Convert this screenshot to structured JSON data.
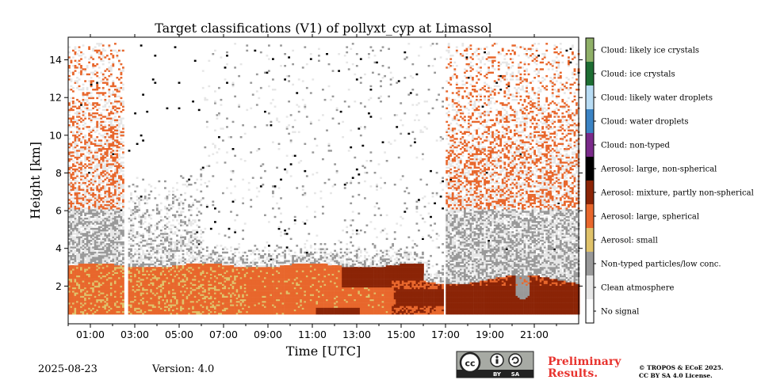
{
  "chart_data": {
    "type": "heatmap",
    "title": "Target classifications (V1) of pollyxt_cyp at Limassol",
    "xlabel": "Time [UTC]",
    "ylabel": "Height [km]",
    "xlim": [
      0,
      23.0
    ],
    "ylim": [
      0,
      15.2
    ],
    "x_ticks": [
      "01:00",
      "03:00",
      "05:00",
      "07:00",
      "09:00",
      "11:00",
      "13:00",
      "15:00",
      "17:00",
      "19:00",
      "21:00"
    ],
    "y_ticks": [
      "2",
      "4",
      "6",
      "8",
      "10",
      "12",
      "14"
    ],
    "legend": [
      {
        "label": "Cloud: likely ice crystals",
        "color": "#8fb068"
      },
      {
        "label": "Cloud: ice crystals",
        "color": "#1e6e33"
      },
      {
        "label": "Cloud: likely water droplets",
        "color": "#b8dcf4"
      },
      {
        "label": "Cloud: water droplets",
        "color": "#3b83c4"
      },
      {
        "label": "Cloud: non-typed",
        "color": "#7a2a8a"
      },
      {
        "label": "Aerosol: large, non-spherical",
        "color": "#000000"
      },
      {
        "label": "Aerosol: mixture, partly non-spherical",
        "color": "#8b2406"
      },
      {
        "label": "Aerosol: large, spherical",
        "color": "#e8672c"
      },
      {
        "label": "Aerosol: small",
        "color": "#e0c26a"
      },
      {
        "label": "Non-typed particles/low conc.",
        "color": "#999999"
      },
      {
        "label": "Clean atmosphere",
        "color": "#e6e6e6"
      },
      {
        "label": "No signal",
        "color": "#ffffff"
      }
    ],
    "missing_data_gaps": [
      [
        2.5,
        2.65
      ],
      [
        16.85,
        17.0
      ]
    ],
    "regions": [
      {
        "class": "Aerosol: large, spherical",
        "x": [
          0.0,
          16.85
        ],
        "y": [
          0.5,
          3.0
        ]
      },
      {
        "class": "Aerosol: mixture, partly non-spherical",
        "x": [
          17.0,
          23.0
        ],
        "y": [
          0.5,
          2.3
        ]
      },
      {
        "class": "Non-typed particles/low conc.",
        "x": [
          0.0,
          23.0
        ],
        "y": [
          3.0,
          6.0
        ]
      },
      {
        "class": "Aerosol: large, spherical",
        "x": [
          0.0,
          2.5
        ],
        "y": [
          3.0,
          14.8
        ]
      },
      {
        "class": "Aerosol: large, spherical",
        "x": [
          17.0,
          23.0
        ],
        "y": [
          3.0,
          14.8
        ]
      }
    ]
  },
  "footer": {
    "date": "2025-08-23",
    "version": "Version: 4.0",
    "preliminary_line1": "Preliminary",
    "preliminary_line2": "Results.",
    "copyright_line1": "© TROPOS & ECoE 2025.",
    "copyright_line2": "CC BY SA 4.0 License.",
    "license_badge_by": "BY",
    "license_badge_sa": "SA"
  }
}
